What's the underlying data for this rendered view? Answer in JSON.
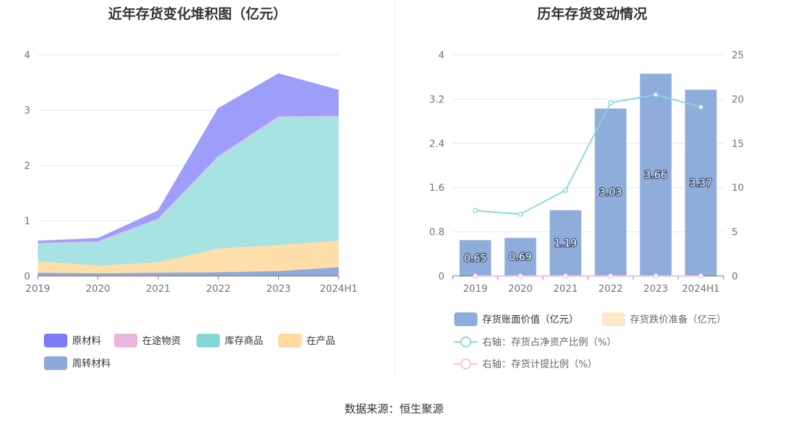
{
  "source": "数据来源：恒生聚源",
  "chart_data": [
    {
      "type": "area",
      "stacked": true,
      "title": "近年存货变化堆积图（亿元）",
      "categories": [
        "2019",
        "2020",
        "2021",
        "2022",
        "2023",
        "2024H1"
      ],
      "ylim": [
        0,
        4
      ],
      "yticks": [
        "0",
        "1",
        "2",
        "3",
        "4"
      ],
      "grid": true,
      "legend_position": "bottom",
      "series": [
        {
          "name": "周转材料",
          "color": "#8eaadd",
          "values": [
            0.05,
            0.04,
            0.05,
            0.06,
            0.08,
            0.15
          ]
        },
        {
          "name": "在产品",
          "color": "#fedfaa",
          "values": [
            0.21,
            0.14,
            0.19,
            0.43,
            0.47,
            0.48
          ]
        },
        {
          "name": "库存商品",
          "color": "#a8e3e3",
          "values": [
            0.33,
            0.44,
            0.79,
            1.67,
            2.33,
            2.26
          ]
        },
        {
          "name": "在途物资",
          "color": "#ebb8e2",
          "values": [
            0,
            0,
            0,
            0,
            0,
            0
          ]
        },
        {
          "name": "原材料",
          "color": "#9d9ef9",
          "values": [
            0.04,
            0.06,
            0.15,
            0.87,
            0.78,
            0.47
          ]
        }
      ],
      "legend": [
        {
          "name": "原材料",
          "color": "#7a7cf5"
        },
        {
          "name": "在途物资",
          "color": "#e8b5df"
        },
        {
          "name": "库存商品",
          "color": "#86d6d6"
        },
        {
          "name": "在产品",
          "color": "#fedb9d"
        },
        {
          "name": "周转材料",
          "color": "#8eaadd"
        }
      ]
    },
    {
      "type": "bar",
      "title": "历年存货变动情况",
      "categories": [
        "2019",
        "2020",
        "2021",
        "2022",
        "2023",
        "2024H1"
      ],
      "ylim": [
        0,
        4
      ],
      "yticks": [
        "0",
        "0.8",
        "1.6",
        "2.4",
        "3.2",
        "4"
      ],
      "y2lim": [
        0,
        25
      ],
      "y2ticks": [
        "0",
        "5",
        "10",
        "15",
        "20",
        "25"
      ],
      "grid": true,
      "legend_position": "bottom",
      "series": [
        {
          "name": "存货账面价值（亿元）",
          "type": "bar",
          "axis": "left",
          "color": "#8eaddb",
          "values": [
            0.65,
            0.69,
            1.19,
            3.03,
            3.66,
            3.37
          ],
          "labels": [
            "0.65",
            "0.69",
            "1.19",
            "3.03",
            "3.66",
            "3.37"
          ]
        },
        {
          "name": "存货跌价准备（亿元）",
          "type": "bar",
          "axis": "left",
          "color": "#fde8c8",
          "values": [
            0,
            0,
            0,
            0,
            0,
            0
          ]
        },
        {
          "name": "右轴：存货占净资产比例（%）",
          "type": "line",
          "axis": "right",
          "color": "#87d7db",
          "values": [
            7.4,
            7.0,
            9.7,
            19.6,
            20.5,
            19.1
          ]
        },
        {
          "name": "右轴：存货计提比例（%）",
          "type": "line",
          "axis": "right",
          "color": "#f1c1e6",
          "values": [
            0,
            0,
            0,
            0,
            0,
            0
          ]
        }
      ]
    }
  ]
}
